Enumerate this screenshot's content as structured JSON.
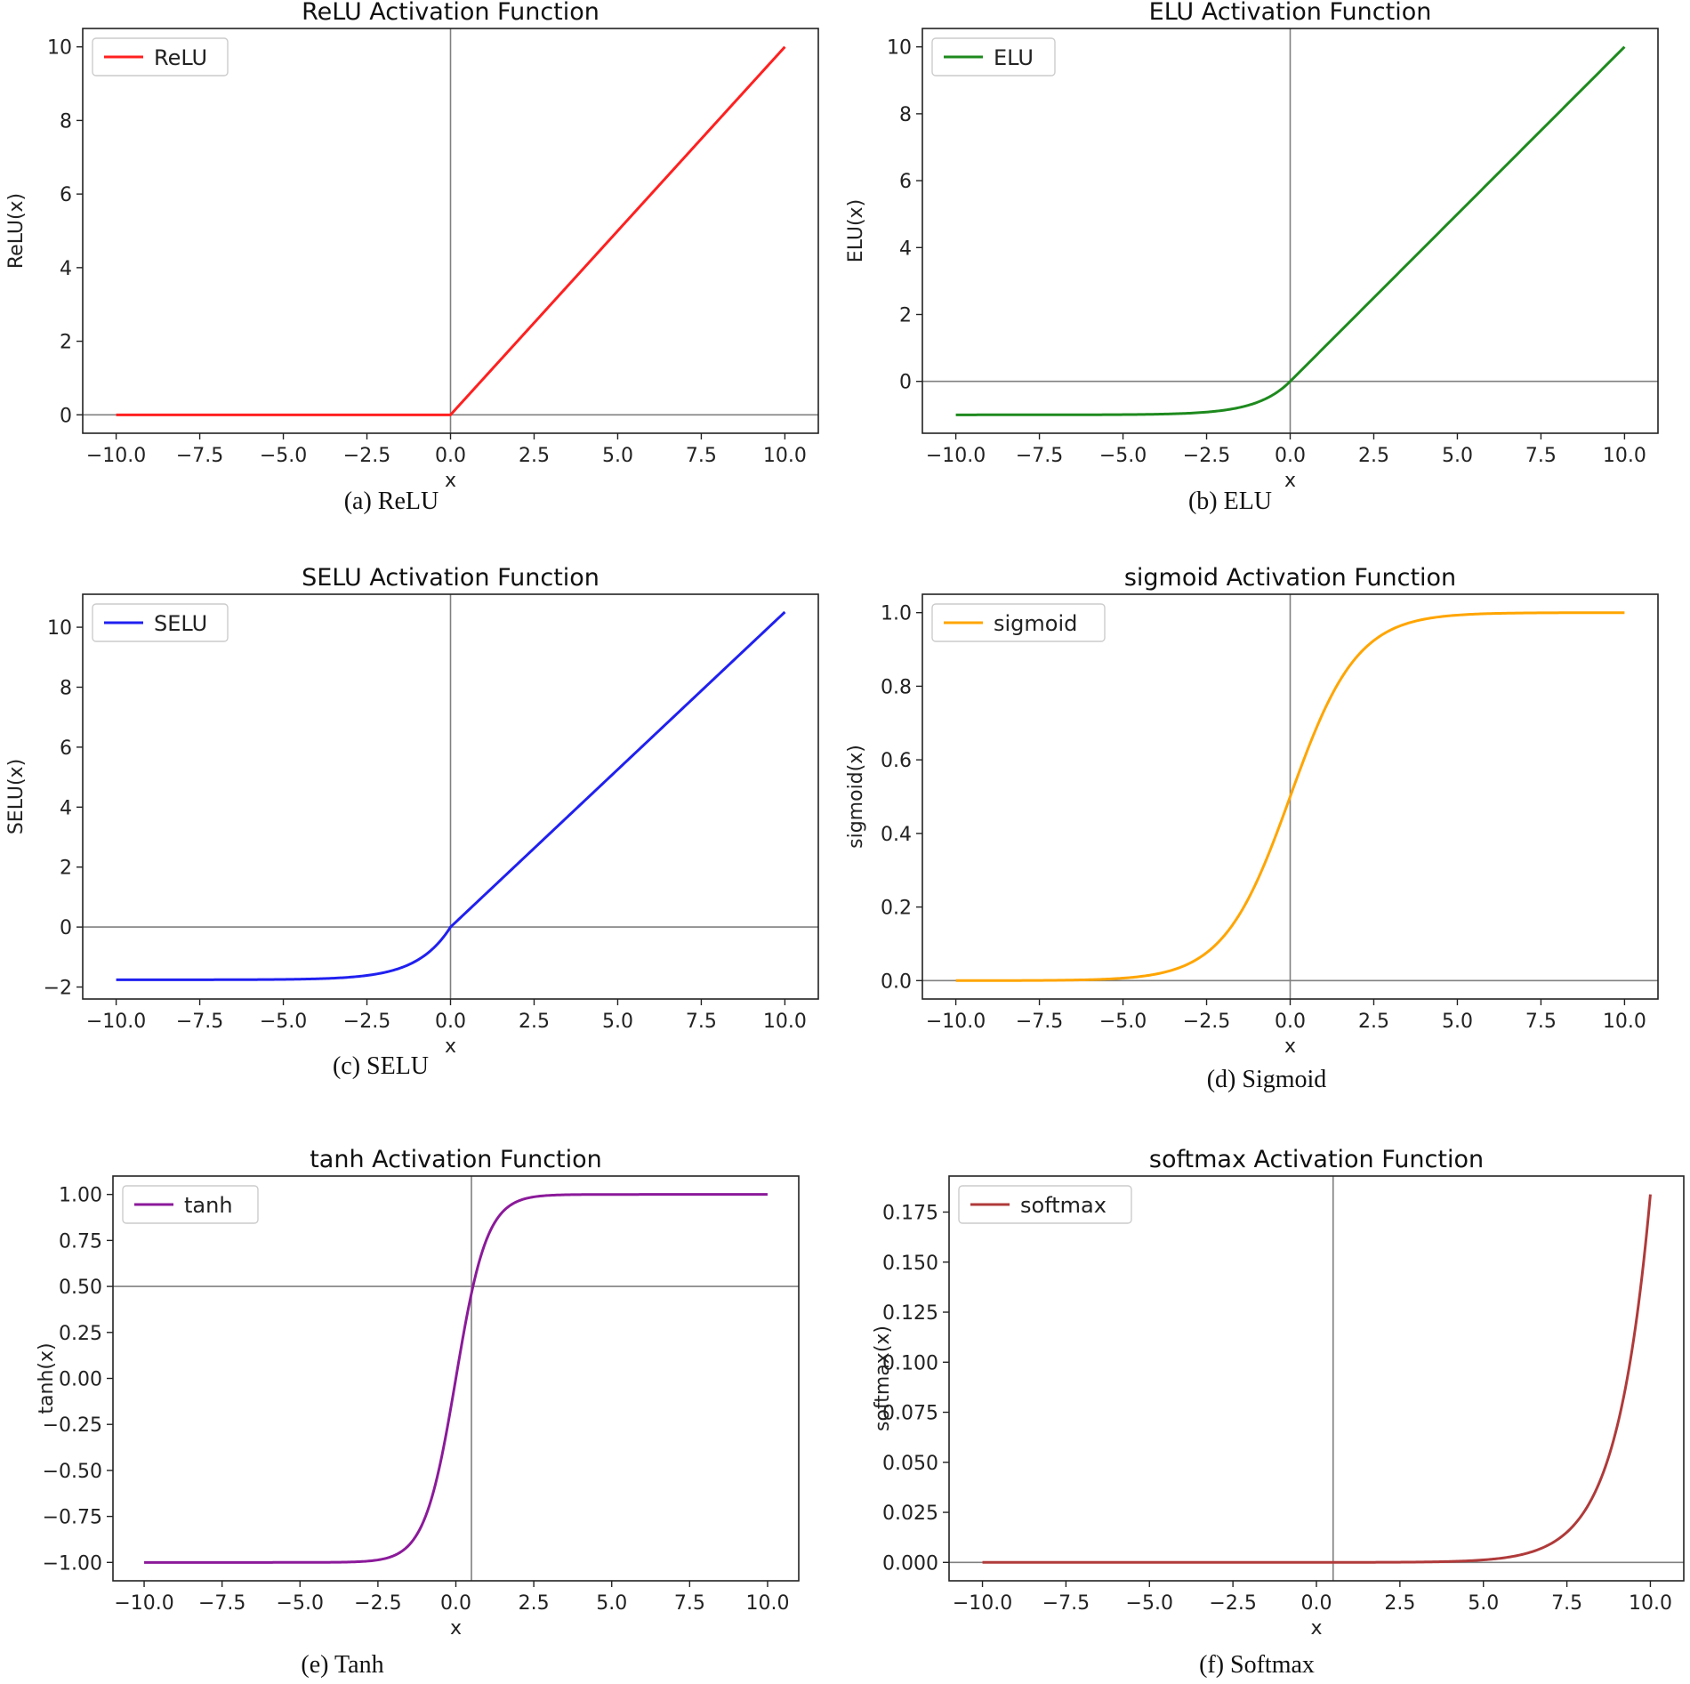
{
  "chart_data": [
    {
      "type": "line",
      "title": "ReLU Activation Function",
      "xlabel": "x",
      "ylabel": "ReLU(x)",
      "caption": "(a) ReLU",
      "legend": "ReLU",
      "legend_position": "top-left",
      "color": "#ff2020",
      "function": "relu",
      "x_range": [
        -10,
        10
      ],
      "xlim": [
        -11,
        11
      ],
      "ylim": [
        -0.5,
        10.5
      ],
      "xticks": [
        -10,
        -7.5,
        -5,
        -2.5,
        0,
        2.5,
        5,
        7.5,
        10
      ],
      "xtick_labels": [
        "−10.0",
        "−7.5",
        "−5.0",
        "−2.5",
        "0.0",
        "2.5",
        "5.0",
        "7.5",
        "10.0"
      ],
      "yticks": [
        0,
        2,
        4,
        6,
        8,
        10
      ],
      "ytick_labels": [
        "0",
        "2",
        "4",
        "6",
        "8",
        "10"
      ],
      "hline": 0,
      "vline": 0,
      "x": [
        -10,
        -7.5,
        -5,
        -2.5,
        0,
        2.5,
        5,
        7.5,
        10
      ],
      "y": [
        0,
        0,
        0,
        0,
        0,
        2.5,
        5,
        7.5,
        10
      ]
    },
    {
      "type": "line",
      "title": "ELU Activation Function",
      "xlabel": "x",
      "ylabel": "ELU(x)",
      "caption": "(b) ELU",
      "legend": "ELU",
      "legend_position": "top-left",
      "color": "#1e8a1e",
      "function": "elu",
      "x_range": [
        -10,
        10
      ],
      "xlim": [
        -11,
        11
      ],
      "ylim": [
        -1.55,
        10.55
      ],
      "xticks": [
        -10,
        -7.5,
        -5,
        -2.5,
        0,
        2.5,
        5,
        7.5,
        10
      ],
      "xtick_labels": [
        "−10.0",
        "−7.5",
        "−5.0",
        "−2.5",
        "0.0",
        "2.5",
        "5.0",
        "7.5",
        "10.0"
      ],
      "yticks": [
        0,
        2,
        4,
        6,
        8,
        10
      ],
      "ytick_labels": [
        "0",
        "2",
        "4",
        "6",
        "8",
        "10"
      ],
      "hline": 0,
      "vline": 0,
      "x": [
        -10,
        -7.5,
        -5,
        -2.5,
        -1,
        0,
        2.5,
        5,
        7.5,
        10
      ],
      "y": [
        -1.0,
        -1.0,
        -0.99,
        -0.92,
        -0.63,
        0,
        2.5,
        5,
        7.5,
        10
      ]
    },
    {
      "type": "line",
      "title": "SELU Activation Function",
      "xlabel": "x",
      "ylabel": "SELU(x)",
      "caption": "(c) SELU",
      "legend": "SELU",
      "legend_position": "top-left",
      "color": "#2020f0",
      "function": "selu",
      "x_range": [
        -10,
        10
      ],
      "xlim": [
        -11,
        11
      ],
      "ylim": [
        -2.4,
        11.1
      ],
      "xticks": [
        -10,
        -7.5,
        -5,
        -2.5,
        0,
        2.5,
        5,
        7.5,
        10
      ],
      "xtick_labels": [
        "−10.0",
        "−7.5",
        "−5.0",
        "−2.5",
        "0.0",
        "2.5",
        "5.0",
        "7.5",
        "10.0"
      ],
      "yticks": [
        -2,
        0,
        2,
        4,
        6,
        8,
        10
      ],
      "ytick_labels": [
        "−2",
        "0",
        "2",
        "4",
        "6",
        "8",
        "10"
      ],
      "hline": 0,
      "vline": 0,
      "x": [
        -10,
        -7.5,
        -5,
        -2.5,
        -1,
        0,
        2.5,
        5,
        7.5,
        10
      ],
      "y": [
        -1.76,
        -1.76,
        -1.74,
        -1.61,
        -1.11,
        0,
        2.63,
        5.25,
        7.88,
        10.51
      ]
    },
    {
      "type": "line",
      "title": "sigmoid Activation Function",
      "xlabel": "x",
      "ylabel": "sigmoid(x)",
      "caption": "(d) Sigmoid",
      "legend": "sigmoid",
      "legend_position": "top-left",
      "color": "#ffa500",
      "function": "sigmoid",
      "x_range": [
        -10,
        10
      ],
      "xlim": [
        -11,
        11
      ],
      "ylim": [
        -0.05,
        1.05
      ],
      "xticks": [
        -10,
        -7.5,
        -5,
        -2.5,
        0,
        2.5,
        5,
        7.5,
        10
      ],
      "xtick_labels": [
        "−10.0",
        "−7.5",
        "−5.0",
        "−2.5",
        "0.0",
        "2.5",
        "5.0",
        "7.5",
        "10.0"
      ],
      "yticks": [
        0,
        0.2,
        0.4,
        0.6,
        0.8,
        1.0
      ],
      "ytick_labels": [
        "0.0",
        "0.2",
        "0.4",
        "0.6",
        "0.8",
        "1.0"
      ],
      "hline": 0,
      "vline": 0,
      "x": [
        -10,
        -7.5,
        -5,
        -2.5,
        0,
        2.5,
        5,
        7.5,
        10
      ],
      "y": [
        0.0,
        0.001,
        0.007,
        0.076,
        0.5,
        0.924,
        0.993,
        0.999,
        1.0
      ]
    },
    {
      "type": "line",
      "title": "tanh Activation Function",
      "xlabel": "x",
      "ylabel": "tanh(x)",
      "caption": "(e) Tanh",
      "legend": "tanh",
      "legend_position": "top-left",
      "color": "#8b1a9a",
      "function": "tanh",
      "x_range": [
        -10,
        10
      ],
      "xlim": [
        -11,
        11
      ],
      "ylim": [
        -1.1,
        1.1
      ],
      "xticks": [
        -10,
        -7.5,
        -5,
        -2.5,
        0,
        2.5,
        5,
        7.5,
        10
      ],
      "xtick_labels": [
        "−10.0",
        "−7.5",
        "−5.0",
        "−2.5",
        "0.0",
        "2.5",
        "5.0",
        "7.5",
        "10.0"
      ],
      "yticks": [
        -1,
        -0.75,
        -0.5,
        -0.25,
        0,
        0.25,
        0.5,
        0.75,
        1.0
      ],
      "ytick_labels": [
        "−1.00",
        "−0.75",
        "−0.50",
        "−0.25",
        "0.00",
        "0.25",
        "0.50",
        "0.75",
        "1.00"
      ],
      "hline": 0.5,
      "vline": 0.5,
      "x": [
        -10,
        -7.5,
        -5,
        -2.5,
        -1,
        0,
        1,
        2.5,
        5,
        7.5,
        10
      ],
      "y": [
        -1.0,
        -1.0,
        -1.0,
        -0.987,
        -0.762,
        0,
        0.762,
        0.987,
        1.0,
        1.0,
        1.0
      ]
    },
    {
      "type": "line",
      "title": "softmax Activation Function",
      "xlabel": "x",
      "ylabel": "softmax(x)",
      "caption": "(f) Softmax",
      "legend": "softmax",
      "legend_position": "top-left",
      "color": "#b03a3a",
      "function": "softmax",
      "x_range": [
        -10,
        10
      ],
      "xlim": [
        -11,
        11
      ],
      "ylim": [
        -0.0092,
        0.193
      ],
      "xticks": [
        -10,
        -7.5,
        -5,
        -2.5,
        0,
        2.5,
        5,
        7.5,
        10
      ],
      "xtick_labels": [
        "−10.0",
        "−7.5",
        "−5.0",
        "−2.5",
        "0.0",
        "2.5",
        "5.0",
        "7.5",
        "10.0"
      ],
      "yticks": [
        0,
        0.025,
        0.05,
        0.075,
        0.1,
        0.125,
        0.15,
        0.175
      ],
      "ytick_labels": [
        "0.000",
        "0.025",
        "0.050",
        "0.075",
        "0.100",
        "0.125",
        "0.150",
        "0.175"
      ],
      "hline": 0,
      "vline": 0.5,
      "x": [
        -10,
        -5,
        0,
        2.5,
        5,
        6,
        7,
        7.5,
        8,
        8.5,
        9,
        9.5,
        10
      ],
      "y": [
        0.0,
        0.0,
        0.0,
        0.0,
        0.002,
        0.005,
        0.01,
        0.017,
        0.027,
        0.045,
        0.068,
        0.111,
        0.184
      ]
    }
  ]
}
